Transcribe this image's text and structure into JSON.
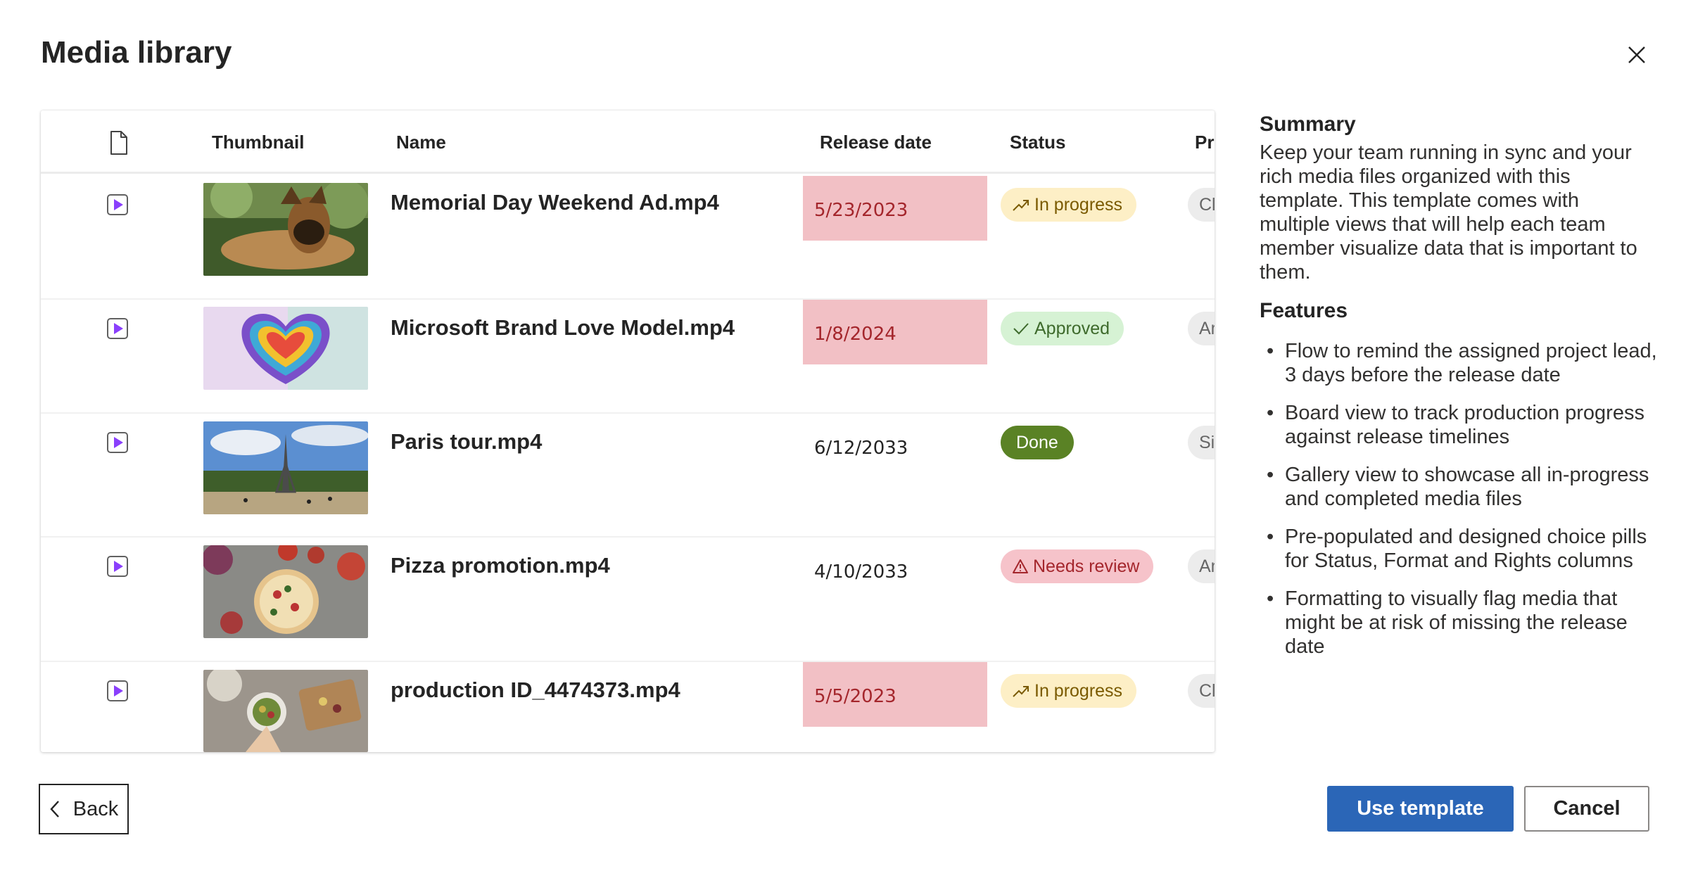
{
  "dialog": {
    "title": "Media library"
  },
  "table": {
    "columns": {
      "thumbnail": "Thumbnail",
      "name": "Name",
      "release_date": "Release date",
      "status": "Status",
      "project_lead": "Pro"
    },
    "rows": [
      {
        "name": "Memorial Day Weekend Ad.mp4",
        "release_date": "5/23/2023",
        "date_flagged": true,
        "status": "In progress",
        "status_icon": "trending-up-icon",
        "person": "Cla",
        "thumbnail": "dog-in-garden"
      },
      {
        "name": "Microsoft Brand Love Model.mp4",
        "release_date": "1/8/2024",
        "date_flagged": true,
        "status": "Approved",
        "status_icon": "checkmark-icon",
        "person": "Am",
        "thumbnail": "rainbow-heart"
      },
      {
        "name": "Paris tour.mp4",
        "release_date": "6/12/2033",
        "date_flagged": false,
        "status": "Done",
        "status_icon": "",
        "person": "Sih",
        "thumbnail": "eiffel-tower"
      },
      {
        "name": "Pizza promotion.mp4",
        "release_date": "4/10/2033",
        "date_flagged": false,
        "status": "Needs review",
        "status_icon": "warning-icon",
        "person": "Am",
        "thumbnail": "pizza-table"
      },
      {
        "name": "production ID_4474373.mp4",
        "release_date": "5/5/2023",
        "date_flagged": true,
        "status": "In progress",
        "status_icon": "trending-up-icon",
        "person": "Cla",
        "thumbnail": "salad-table"
      }
    ]
  },
  "summary": {
    "heading": "Summary",
    "text": "Keep your team running in sync and your rich media files organized with this template. This template comes with multiple views that will help each team member visualize data that is important to them."
  },
  "features": {
    "heading": "Features",
    "items": [
      "Flow to remind the assigned project lead, 3 days before the release date",
      "Board view to track production progress against release timelines",
      "Gallery view to showcase all in-progress and completed media files",
      "Pre-populated and designed choice pills for Status, Format and Rights columns",
      "Formatting to visually flag media that might be at risk of missing the release date"
    ]
  },
  "buttons": {
    "back": "Back",
    "use_template": "Use template",
    "cancel": "Cancel"
  },
  "colors": {
    "primary": "#2b66b7",
    "flag_bg": "#f2c0c5",
    "flag_text": "#a4262c",
    "in_progress_bg": "#fdefc6",
    "approved_bg": "#d6f2d4",
    "done_bg": "#5a8225",
    "review_bg": "#f6c3ca"
  }
}
